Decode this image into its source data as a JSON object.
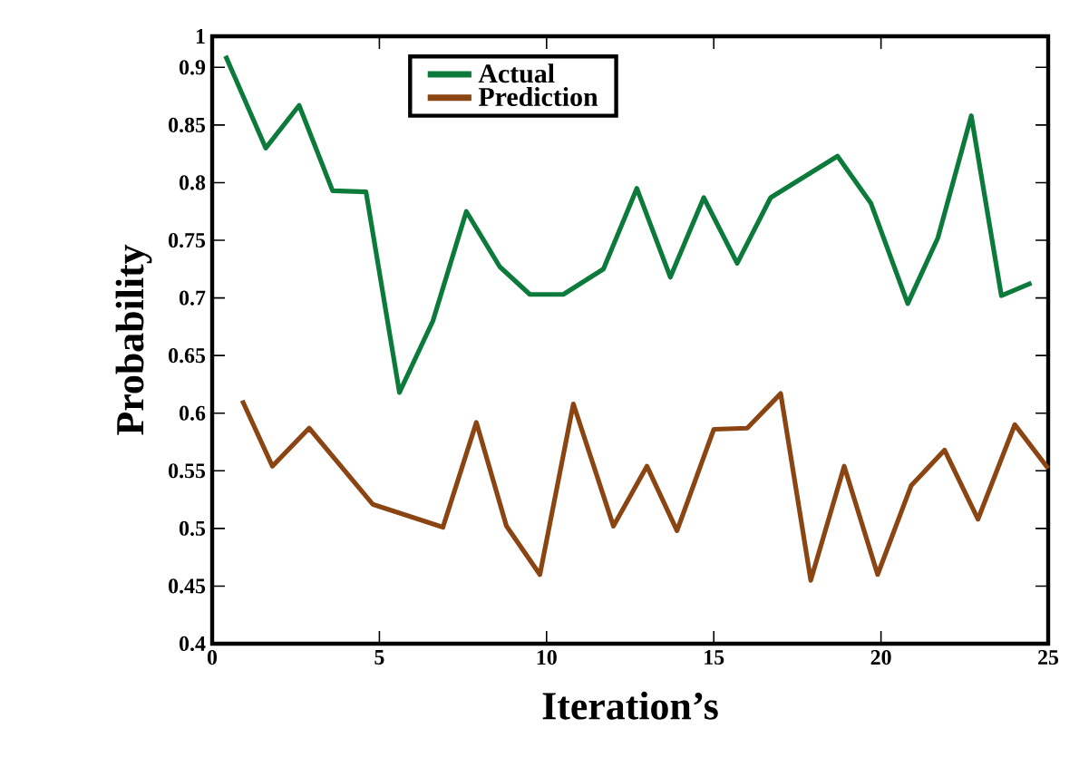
{
  "chart_data": {
    "type": "line",
    "xlabel": "Iteration’s",
    "ylabel": "Probability",
    "xlim": [
      0,
      25
    ],
    "xticks": [
      0,
      5,
      10,
      15,
      20,
      25
    ],
    "ylim": [
      0.4,
      0.927
    ],
    "yticks": [
      0.4,
      0.45,
      0.5,
      0.55,
      0.6,
      0.65,
      0.7,
      0.75,
      0.8,
      0.85,
      0.9,
      {
        "value": 0.927,
        "label": "1"
      }
    ],
    "grid": false,
    "legend": "top",
    "marker": "none",
    "line_style": "solid",
    "series": [
      {
        "name": "Actual",
        "color": "#0b7a3b",
        "x": [
          0.4,
          1.6,
          2.6,
          3.6,
          4.6,
          5.6,
          6.6,
          7.6,
          8.6,
          9.5,
          10.5,
          11.7,
          12.7,
          13.7,
          14.7,
          15.7,
          16.7,
          18.7,
          19.7,
          20.8,
          21.7,
          22.7,
          23.6,
          24.5
        ],
        "values": [
          0.91,
          0.83,
          0.867,
          0.793,
          0.792,
          0.618,
          0.68,
          0.775,
          0.727,
          0.703,
          0.703,
          0.725,
          0.795,
          0.718,
          0.787,
          0.73,
          0.787,
          0.823,
          0.782,
          0.695,
          0.752,
          0.858,
          0.702,
          0.713
        ]
      },
      {
        "name": "Prediction",
        "color": "#8b4513",
        "x": [
          0.9,
          1.8,
          2.9,
          4.8,
          6.9,
          7.9,
          8.8,
          9.8,
          10.8,
          12.0,
          13.0,
          13.9,
          15.0,
          16.0,
          17.0,
          17.9,
          18.9,
          19.9,
          20.9,
          21.9,
          22.9,
          24.0,
          25.0
        ],
        "values": [
          0.611,
          0.554,
          0.587,
          0.521,
          0.501,
          0.592,
          0.502,
          0.46,
          0.608,
          0.502,
          0.554,
          0.498,
          0.586,
          0.587,
          0.617,
          0.455,
          0.554,
          0.46,
          0.537,
          0.568,
          0.508,
          0.59,
          0.552
        ]
      }
    ]
  }
}
